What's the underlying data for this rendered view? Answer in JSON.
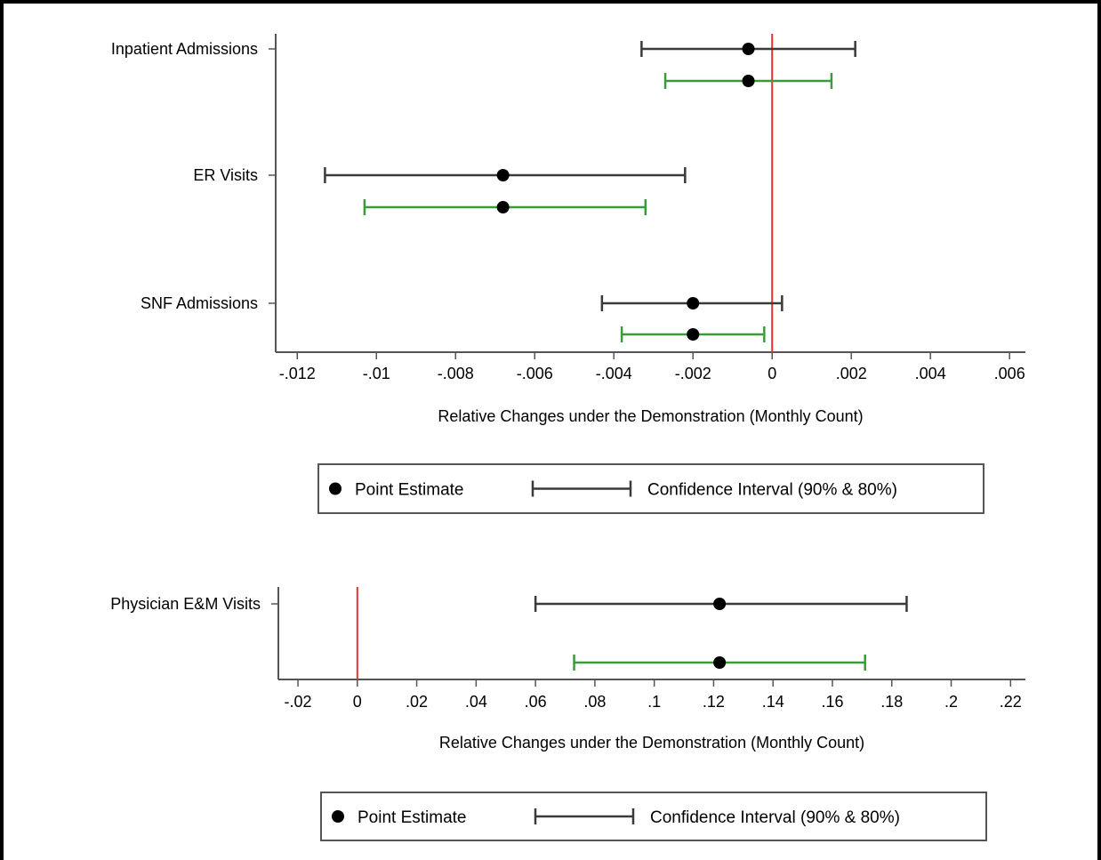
{
  "chart_data": [
    {
      "type": "scatter",
      "subtype": "coefficient-plot",
      "xlabel": "Relative Changes under the Demonstration (Monthly Count)",
      "ylabel": "",
      "xlim": [
        -0.0125,
        0.0064
      ],
      "xticks": [
        -0.012,
        -0.01,
        -0.008,
        -0.006,
        -0.004,
        -0.002,
        0,
        0.002,
        0.004,
        0.006
      ],
      "xtick_labels": [
        "-.012",
        "-.01",
        "-.008",
        "-.006",
        "-.004",
        "-.002",
        "0",
        ".002",
        ".004",
        ".006"
      ],
      "reference_line": {
        "x": 0,
        "color": "#e8302c"
      },
      "categories": [
        "Inpatient Admissions",
        "ER Visits",
        "SNF Admissions"
      ],
      "point_estimate": [
        -0.0006,
        -0.0068,
        -0.002
      ],
      "ci_90": [
        [
          -0.0033,
          0.0021
        ],
        [
          -0.0113,
          -0.0022
        ],
        [
          -0.0043,
          0.00025
        ]
      ],
      "ci_80": [
        [
          -0.0027,
          0.0015
        ],
        [
          -0.0103,
          -0.0032
        ],
        [
          -0.0038,
          -0.0002
        ]
      ],
      "ci_90_color": "#3a3a3a",
      "ci_80_color": "#3b9a3b",
      "legend": {
        "point_label": "Point Estimate",
        "ci_label": "Confidence Interval (90% & 80%)",
        "position": "bottom"
      }
    },
    {
      "type": "scatter",
      "subtype": "coefficient-plot",
      "xlabel": "Relative Changes under the Demonstration (Monthly Count)",
      "ylabel": "",
      "xlim": [
        -0.026,
        0.225
      ],
      "xticks": [
        -0.02,
        0,
        0.02,
        0.04,
        0.06,
        0.08,
        0.1,
        0.12,
        0.14,
        0.16,
        0.18,
        0.2,
        0.22
      ],
      "xtick_labels": [
        "-.02",
        "0",
        ".02",
        ".04",
        ".06",
        ".08",
        ".1",
        ".12",
        ".14",
        ".16",
        ".18",
        ".2",
        ".22"
      ],
      "reference_line": {
        "x": 0,
        "color": "#e8302c"
      },
      "categories": [
        "Physician E&M Visits"
      ],
      "point_estimate": [
        0.122
      ],
      "ci_90": [
        [
          0.06,
          0.185
        ]
      ],
      "ci_80": [
        [
          0.073,
          0.171
        ]
      ],
      "ci_90_color": "#3a3a3a",
      "ci_80_color": "#3b9a3b",
      "legend": {
        "point_label": "Point Estimate",
        "ci_label": "Confidence Interval (90% & 80%)",
        "position": "bottom"
      }
    }
  ]
}
